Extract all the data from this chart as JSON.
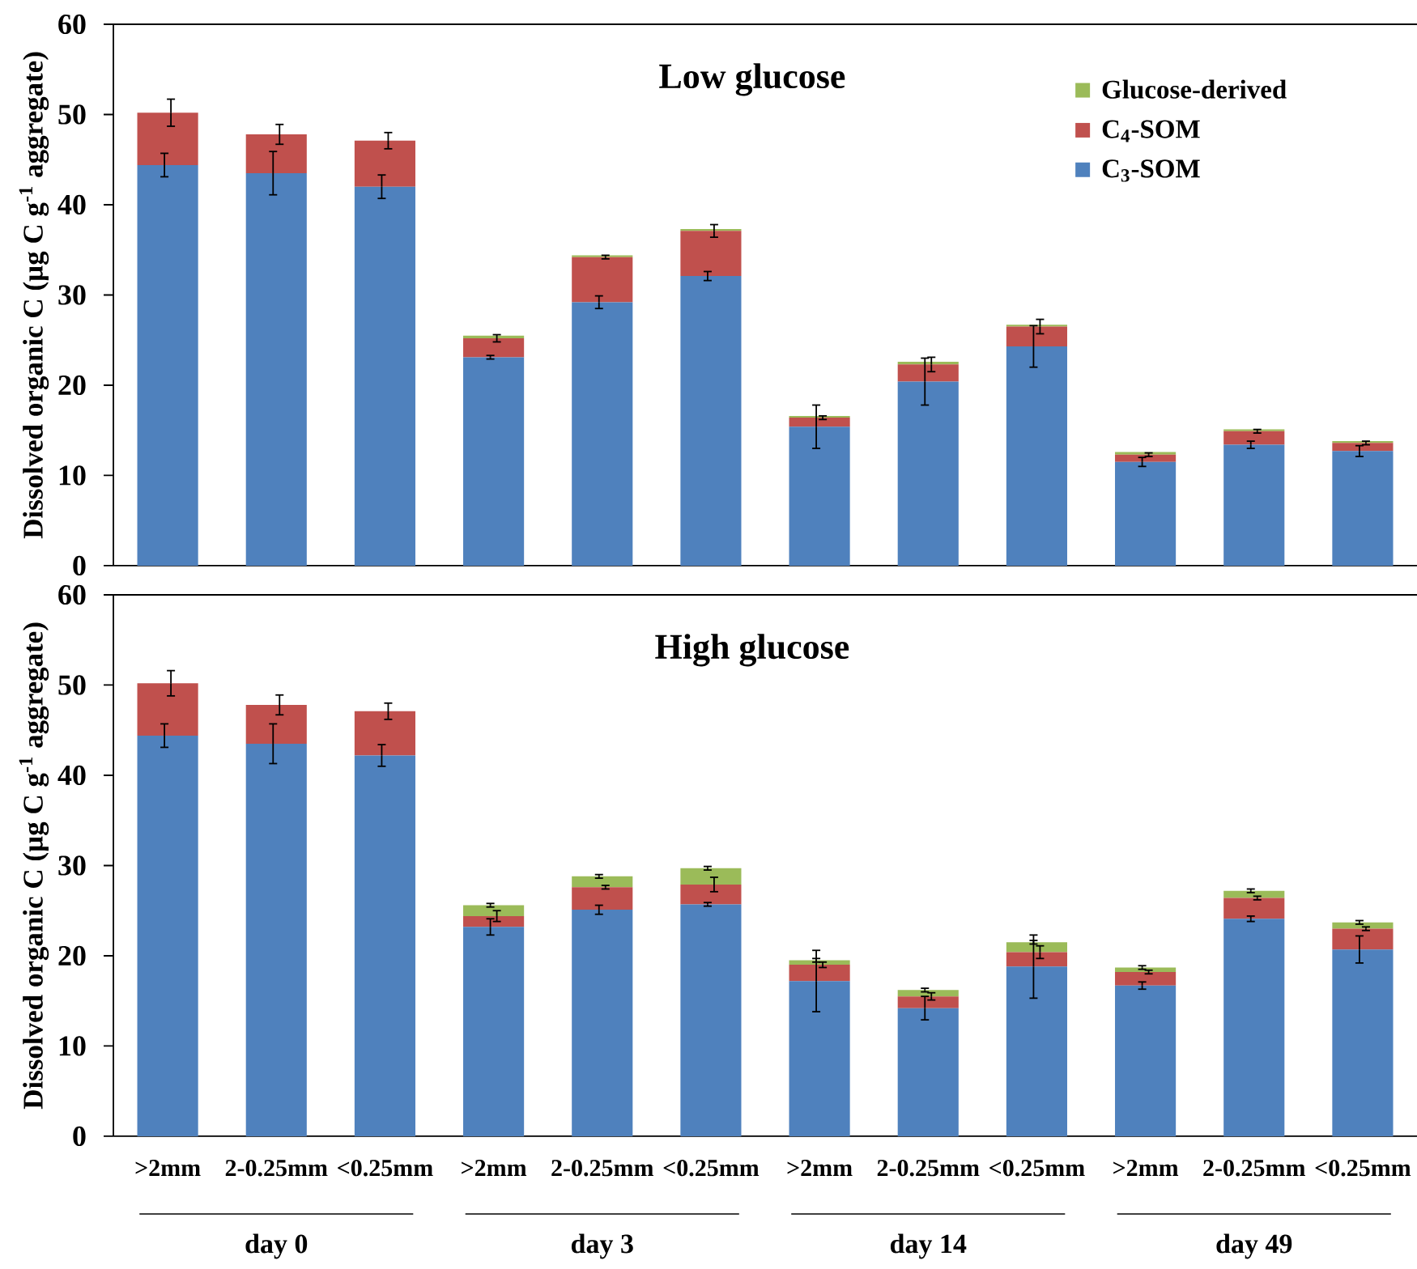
{
  "chart_data": [
    {
      "type": "bar",
      "title": "Low glucose",
      "ylabel": "Dissolved organic C (µg C g$^{-1}$ aggregate)",
      "categories": [
        null,
        null,
        null,
        null,
        null,
        null,
        null,
        null,
        null,
        null,
        null,
        null
      ],
      "stacked": true,
      "ylim": [
        0,
        60
      ],
      "yticks": [
        0,
        10,
        20,
        30,
        40,
        50,
        60
      ],
      "legend": "top right",
      "series": [
        {
          "name": "C$_{3}$-SOM",
          "color": "#4f81bd",
          "values": [
            44.4,
            43.5,
            42.0,
            23.1,
            29.2,
            32.1,
            15.4,
            20.4,
            24.3,
            11.5,
            13.4,
            12.7
          ],
          "errors": [
            1.3,
            2.4,
            1.3,
            0.2,
            0.7,
            0.5,
            2.4,
            2.6,
            2.3,
            0.5,
            0.4,
            0.6
          ]
        },
        {
          "name": "C$_{4}$-SOM",
          "color": "#c0504d",
          "values": [
            5.8,
            4.3,
            5.1,
            2.1,
            5.0,
            5.0,
            1.0,
            1.9,
            2.2,
            0.8,
            1.5,
            0.9
          ],
          "errors": [
            1.5,
            1.1,
            0.9,
            0.4,
            0.2,
            0.7,
            0.2,
            0.8,
            0.8,
            0.2,
            0.2,
            0.2
          ]
        },
        {
          "name": "Glucose-derived",
          "color": "#9bbb59",
          "values": [
            null,
            null,
            null,
            0.3,
            0.2,
            0.2,
            0.2,
            0.3,
            0.2,
            0.3,
            0.2,
            0.2
          ]
        }
      ]
    },
    {
      "type": "bar",
      "title": "High glucose",
      "ylabel": "Dissolved organic C (µg C g$^{-1}$ aggregate)",
      "categories": [
        ">2mm",
        "2-0.25mm",
        "<0.25mm",
        ">2mm",
        "2-0.25mm",
        "<0.25mm",
        ">2mm",
        "2-0.25mm",
        "<0.25mm",
        ">2mm",
        "2-0.25mm",
        "<0.25mm"
      ],
      "stacked": true,
      "ylim": [
        0,
        60
      ],
      "yticks": [
        0,
        10,
        20,
        30,
        40,
        50,
        60
      ],
      "annotations": [
        "day 0",
        "day 3",
        "day 14",
        "day 49"
      ],
      "series": [
        {
          "color": "#4f81bd",
          "values": [
            44.4,
            43.5,
            42.2,
            23.2,
            25.1,
            25.7,
            17.2,
            14.2,
            18.8,
            16.7,
            24.1,
            20.7
          ],
          "errors": [
            1.3,
            2.2,
            1.2,
            0.9,
            0.5,
            0.2,
            3.4,
            1.3,
            3.5,
            0.4,
            0.3,
            1.5
          ]
        },
        {
          "color": "#c0504d",
          "values": [
            5.8,
            4.3,
            4.9,
            1.2,
            2.5,
            2.2,
            1.8,
            1.3,
            1.6,
            1.5,
            2.3,
            2.3
          ],
          "errors": [
            1.4,
            1.1,
            0.9,
            0.6,
            0.2,
            0.8,
            0.3,
            0.4,
            0.7,
            0.2,
            0.2,
            0.2
          ]
        },
        {
          "color": "#9bbb59",
          "values": [
            null,
            null,
            null,
            1.2,
            1.2,
            1.8,
            0.5,
            0.7,
            1.1,
            0.5,
            0.8,
            0.7
          ],
          "errors": [
            null,
            null,
            null,
            0.2,
            0.2,
            0.2,
            0.2,
            0.2,
            0.2,
            0.2,
            0.2,
            0.2
          ]
        }
      ]
    }
  ]
}
